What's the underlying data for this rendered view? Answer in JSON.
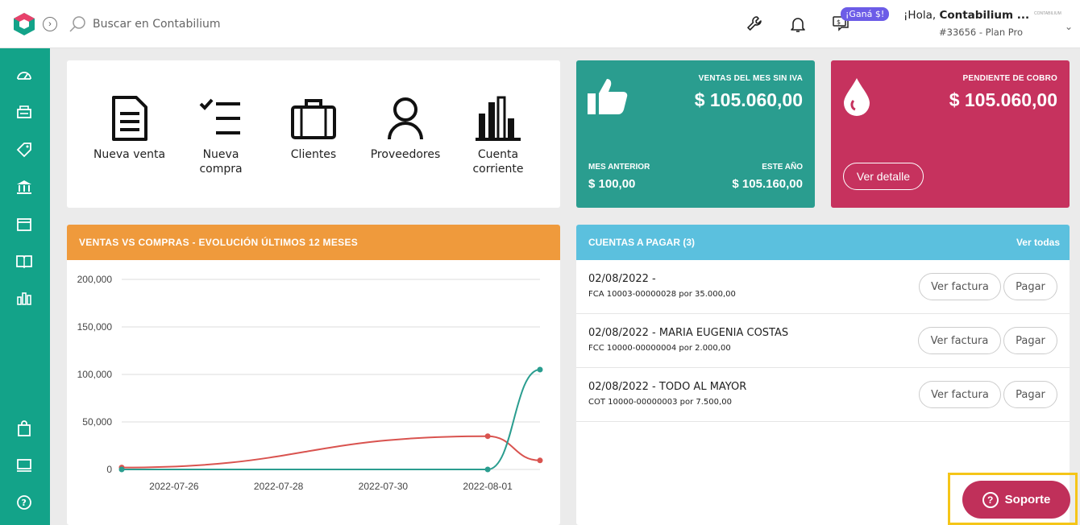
{
  "header": {
    "search_placeholder": "Buscar en Contabilium",
    "promo_badge": "¡Ganá $!",
    "greeting_prefix": "¡Hola, ",
    "user_name": "Contabilium ...",
    "plan": "#33656 - Plan Pro",
    "avatar_text": "CONTABILIUM",
    "icons": [
      "wrench-icon",
      "bell-icon",
      "chat-money-icon"
    ]
  },
  "sidebar": {
    "items": [
      "dashboard-icon",
      "pos-icon",
      "tag-icon",
      "bank-icon",
      "inventory-box-icon",
      "book-icon",
      "reports-chart-icon",
      "bag-icon",
      "monitor-icon",
      "help-icon"
    ]
  },
  "shortcuts": [
    {
      "label": "Nueva venta"
    },
    {
      "label": "Nueva compra"
    },
    {
      "label": "Clientes"
    },
    {
      "label": "Proveedores"
    },
    {
      "label": "Cuenta corriente"
    }
  ],
  "kpi_sales": {
    "label": "VENTAS DEL MES SIN IVA",
    "value": "$ 105.060,00",
    "prev_label": "MES ANTERIOR",
    "prev_value": "$ 100,00",
    "year_label": "ESTE AÑO",
    "year_value": "$ 105.160,00",
    "color": "#2a9d8f"
  },
  "kpi_pending": {
    "label": "PENDIENTE DE COBRO",
    "value": "$ 105.060,00",
    "button": "Ver detalle",
    "color": "#c6325e"
  },
  "chart_panel": {
    "title": "VENTAS VS COMPRAS - EVOLUCIÓN ÚLTIMOS 12 MESES",
    "color": "#ef9a3c"
  },
  "chart_data": {
    "type": "line",
    "x": [
      "2022-07-25",
      "2022-08-01",
      "2022-08-02"
    ],
    "xticks": [
      "2022-07-26",
      "2022-07-28",
      "2022-07-30",
      "2022-08-01"
    ],
    "ylim": [
      0,
      200000
    ],
    "yticks": [
      "0",
      "50,000",
      "100,000",
      "150,000",
      "200,000"
    ],
    "grid": true,
    "series": [
      {
        "color": "#d9534f",
        "values": [
          2000,
          35000,
          9500
        ]
      },
      {
        "color": "#2a9d8f",
        "values": [
          0,
          0,
          105060
        ]
      }
    ]
  },
  "payables": {
    "title": "CUENTAS A PAGAR (3)",
    "see_all": "Ver todas",
    "color": "#5bc0de",
    "view_label": "Ver factura",
    "pay_label": "Pagar",
    "rows": [
      {
        "title": "02/08/2022 -",
        "detail": "FCA 10003-00000028 por 35.000,00"
      },
      {
        "title": "02/08/2022 - MARIA EUGENIA COSTAS",
        "detail": "FCC 10000-00000004 por 2.000,00"
      },
      {
        "title": "02/08/2022 - TODO AL MAYOR",
        "detail": "COT 10000-00000003 por 7.500,00"
      }
    ]
  },
  "support": {
    "label": "Soporte",
    "color": "#c0305a"
  }
}
